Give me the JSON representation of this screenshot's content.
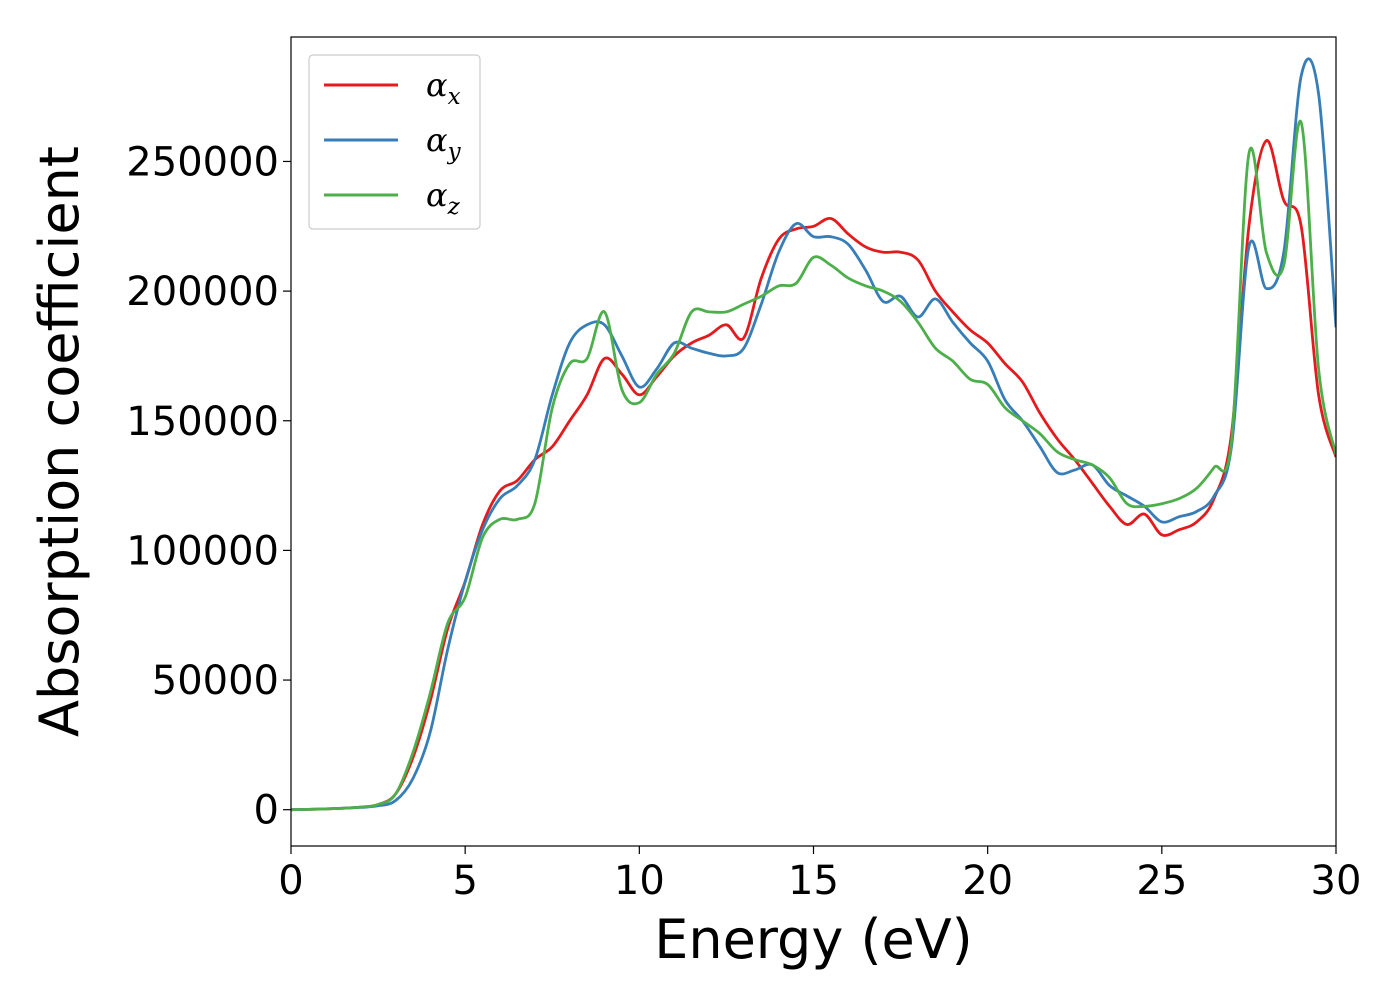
{
  "chart_data": {
    "type": "line",
    "title": "",
    "xlabel": "Energy (eV)",
    "ylabel": "Absorption coefficient",
    "xlim": [
      0,
      30
    ],
    "ylim": [
      -14000,
      298000
    ],
    "xticks": [
      0,
      5,
      10,
      15,
      20,
      25,
      30
    ],
    "yticks": [
      0,
      50000,
      100000,
      150000,
      200000,
      250000
    ],
    "grid": false,
    "legend": {
      "placement": "top-left"
    },
    "x": [
      0,
      1,
      2,
      2.5,
      3,
      3.5,
      4,
      4.5,
      5,
      5.5,
      6,
      6.5,
      7,
      7.5,
      8,
      8.5,
      9,
      9.5,
      10,
      10.5,
      11,
      11.5,
      12,
      12.5,
      13,
      13.5,
      14,
      14.5,
      15,
      15.5,
      16,
      16.5,
      17,
      17.5,
      18,
      18.5,
      19,
      19.5,
      20,
      20.5,
      21,
      21.5,
      22,
      22.5,
      23,
      23.5,
      24,
      24.5,
      25,
      25.5,
      26,
      26.5,
      27,
      27.5,
      28,
      28.5,
      29,
      29.5,
      30
    ],
    "series": [
      {
        "name": "α",
        "subscript": "x",
        "color": "#e41a1c",
        "values": [
          0,
          300,
          1000,
          2000,
          6000,
          20000,
          42000,
          70000,
          88000,
          110000,
          123000,
          127000,
          135000,
          140000,
          150000,
          160000,
          174000,
          168000,
          160000,
          167000,
          175000,
          180000,
          183000,
          187000,
          182000,
          205000,
          220000,
          224000,
          225000,
          228000,
          222000,
          217000,
          215000,
          215000,
          212000,
          200000,
          192000,
          185000,
          180000,
          172000,
          165000,
          153000,
          143000,
          135000,
          126000,
          117000,
          110000,
          114000,
          106000,
          108000,
          111000,
          120000,
          145000,
          225000,
          258000,
          235000,
          225000,
          160000,
          136000
        ]
      },
      {
        "name": "α",
        "subscript": "y",
        "color": "#377eb8",
        "values": [
          0,
          300,
          900,
          1500,
          3500,
          12000,
          30000,
          62000,
          88000,
          108000,
          120000,
          125000,
          135000,
          160000,
          180000,
          187000,
          187000,
          175000,
          163000,
          170000,
          180000,
          178000,
          176000,
          175000,
          178000,
          195000,
          215000,
          226000,
          221000,
          221000,
          218000,
          208000,
          196000,
          198000,
          190000,
          197000,
          188000,
          180000,
          173000,
          158000,
          150000,
          140000,
          130000,
          131000,
          133000,
          125000,
          121000,
          117000,
          111000,
          113000,
          115000,
          121000,
          140000,
          217000,
          201000,
          215000,
          283000,
          276000,
          186000
        ]
      },
      {
        "name": "α",
        "subscript": "z",
        "color": "#4daf4a",
        "values": [
          0,
          300,
          1000,
          2000,
          6000,
          22000,
          45000,
          72000,
          82000,
          105000,
          112000,
          112000,
          118000,
          155000,
          172000,
          174000,
          192000,
          162000,
          157000,
          168000,
          176000,
          192000,
          192000,
          192000,
          195000,
          198000,
          202000,
          203000,
          213000,
          210000,
          205000,
          202000,
          200000,
          196000,
          188000,
          178000,
          173000,
          166000,
          164000,
          155000,
          150000,
          145000,
          138000,
          135000,
          133000,
          128000,
          118000,
          117000,
          118000,
          120000,
          124000,
          132000,
          142000,
          253000,
          215000,
          210000,
          265000,
          170000,
          137000
        ]
      }
    ]
  }
}
